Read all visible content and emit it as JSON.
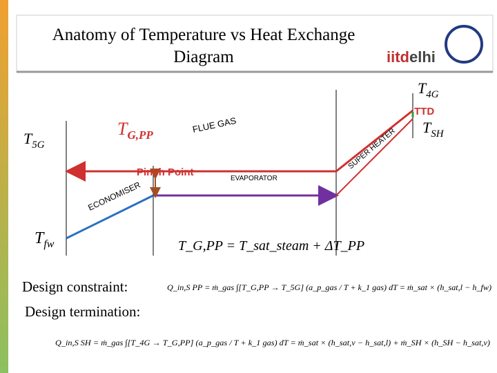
{
  "header": {
    "title_line1": "Anatomy of Temperature vs Heat Exchange",
    "title_line2": "Diagram",
    "logo_a": "iitd",
    "logo_b": "elhi"
  },
  "diagram": {
    "t4g": {
      "main": "T",
      "sub": "4G"
    },
    "ttd": "TTD",
    "tsh": {
      "main": "T",
      "sub": "SH"
    },
    "t5g": {
      "main": "T",
      "sub": "5G"
    },
    "tgpp": {
      "main": "T",
      "sub": "G,PP"
    },
    "flue_gas": "FLUE GAS",
    "super_heater": "SUPER HEATER",
    "pinch_point": "Pinch Point",
    "evaporator": "EVAPORATOR",
    "economiser": "ECONOMISER",
    "tfw": {
      "main": "T",
      "sub": "fw"
    }
  },
  "equations": {
    "pinch": "T_G,PP = T_sat_steam + ΔT_PP",
    "constraint_label": "Design constraint:",
    "constraint": "Q_in,S PP = ṁ_gas ∫[T_G,PP → T_5G] (a_p_gas / T + k_1 gas) dT = ṁ_sat × (h_sat,l − h_fw)",
    "termination_label": "Design termination:",
    "termination": "Q_in,S SH = ṁ_gas ∫[T_4G → T_G,PP] (a_p_gas / T + k_1 gas) dT = ṁ_sat × (h_sat,v − h_sat,l) + ṁ_SH × (h_SH − h_sat,v)"
  }
}
